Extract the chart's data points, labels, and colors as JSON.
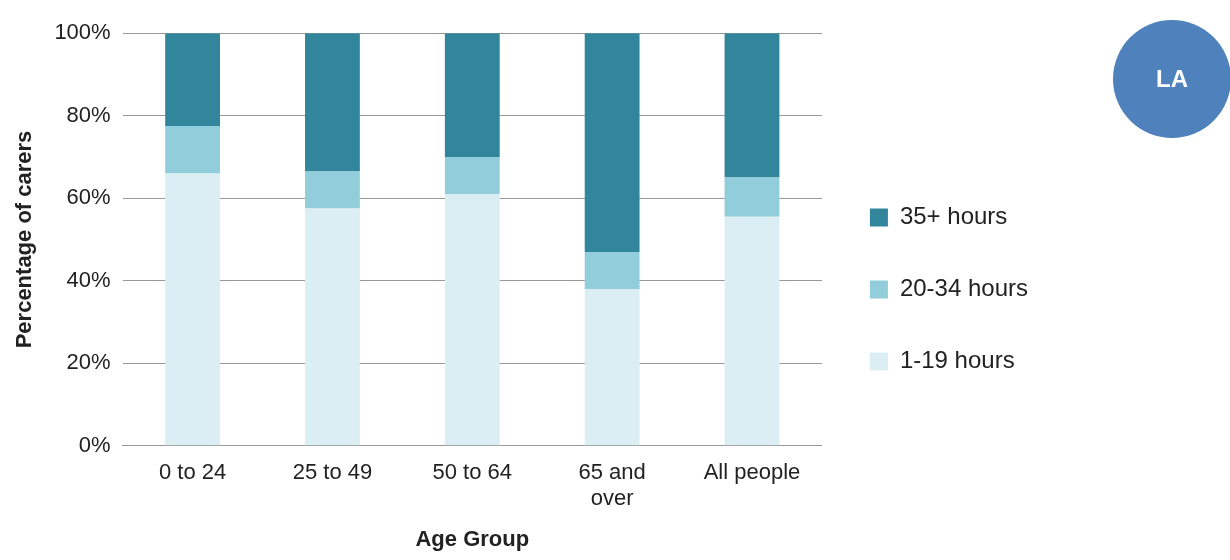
{
  "chart_data": {
    "type": "bar",
    "stacked": true,
    "xlabel": "Age Group",
    "ylabel": "Percentage of carers",
    "categories": [
      "0 to 24",
      "25 to 49",
      "50 to 64",
      "65 and over",
      "All people"
    ],
    "series": [
      {
        "name": "1-19 hours",
        "color": "#daeef3",
        "values": [
          66,
          57.5,
          61,
          38,
          55.5
        ]
      },
      {
        "name": "20-34 hours",
        "color": "#92cddc",
        "values": [
          11.5,
          9,
          9,
          9,
          9.5
        ]
      },
      {
        "name": "35+ hours",
        "color": "#31869b",
        "values": [
          22.5,
          33.5,
          30,
          53,
          35
        ]
      }
    ],
    "ylim": [
      0,
      100
    ],
    "yticks": [
      {
        "value": 0,
        "label": "0%"
      },
      {
        "value": 20,
        "label": "20%"
      },
      {
        "value": 40,
        "label": "40%"
      },
      {
        "value": 60,
        "label": "60%"
      },
      {
        "value": 80,
        "label": "80%"
      },
      {
        "value": 100,
        "label": "100%"
      }
    ],
    "grid": "y",
    "legend": "right",
    "annotations": [
      "LA"
    ]
  }
}
